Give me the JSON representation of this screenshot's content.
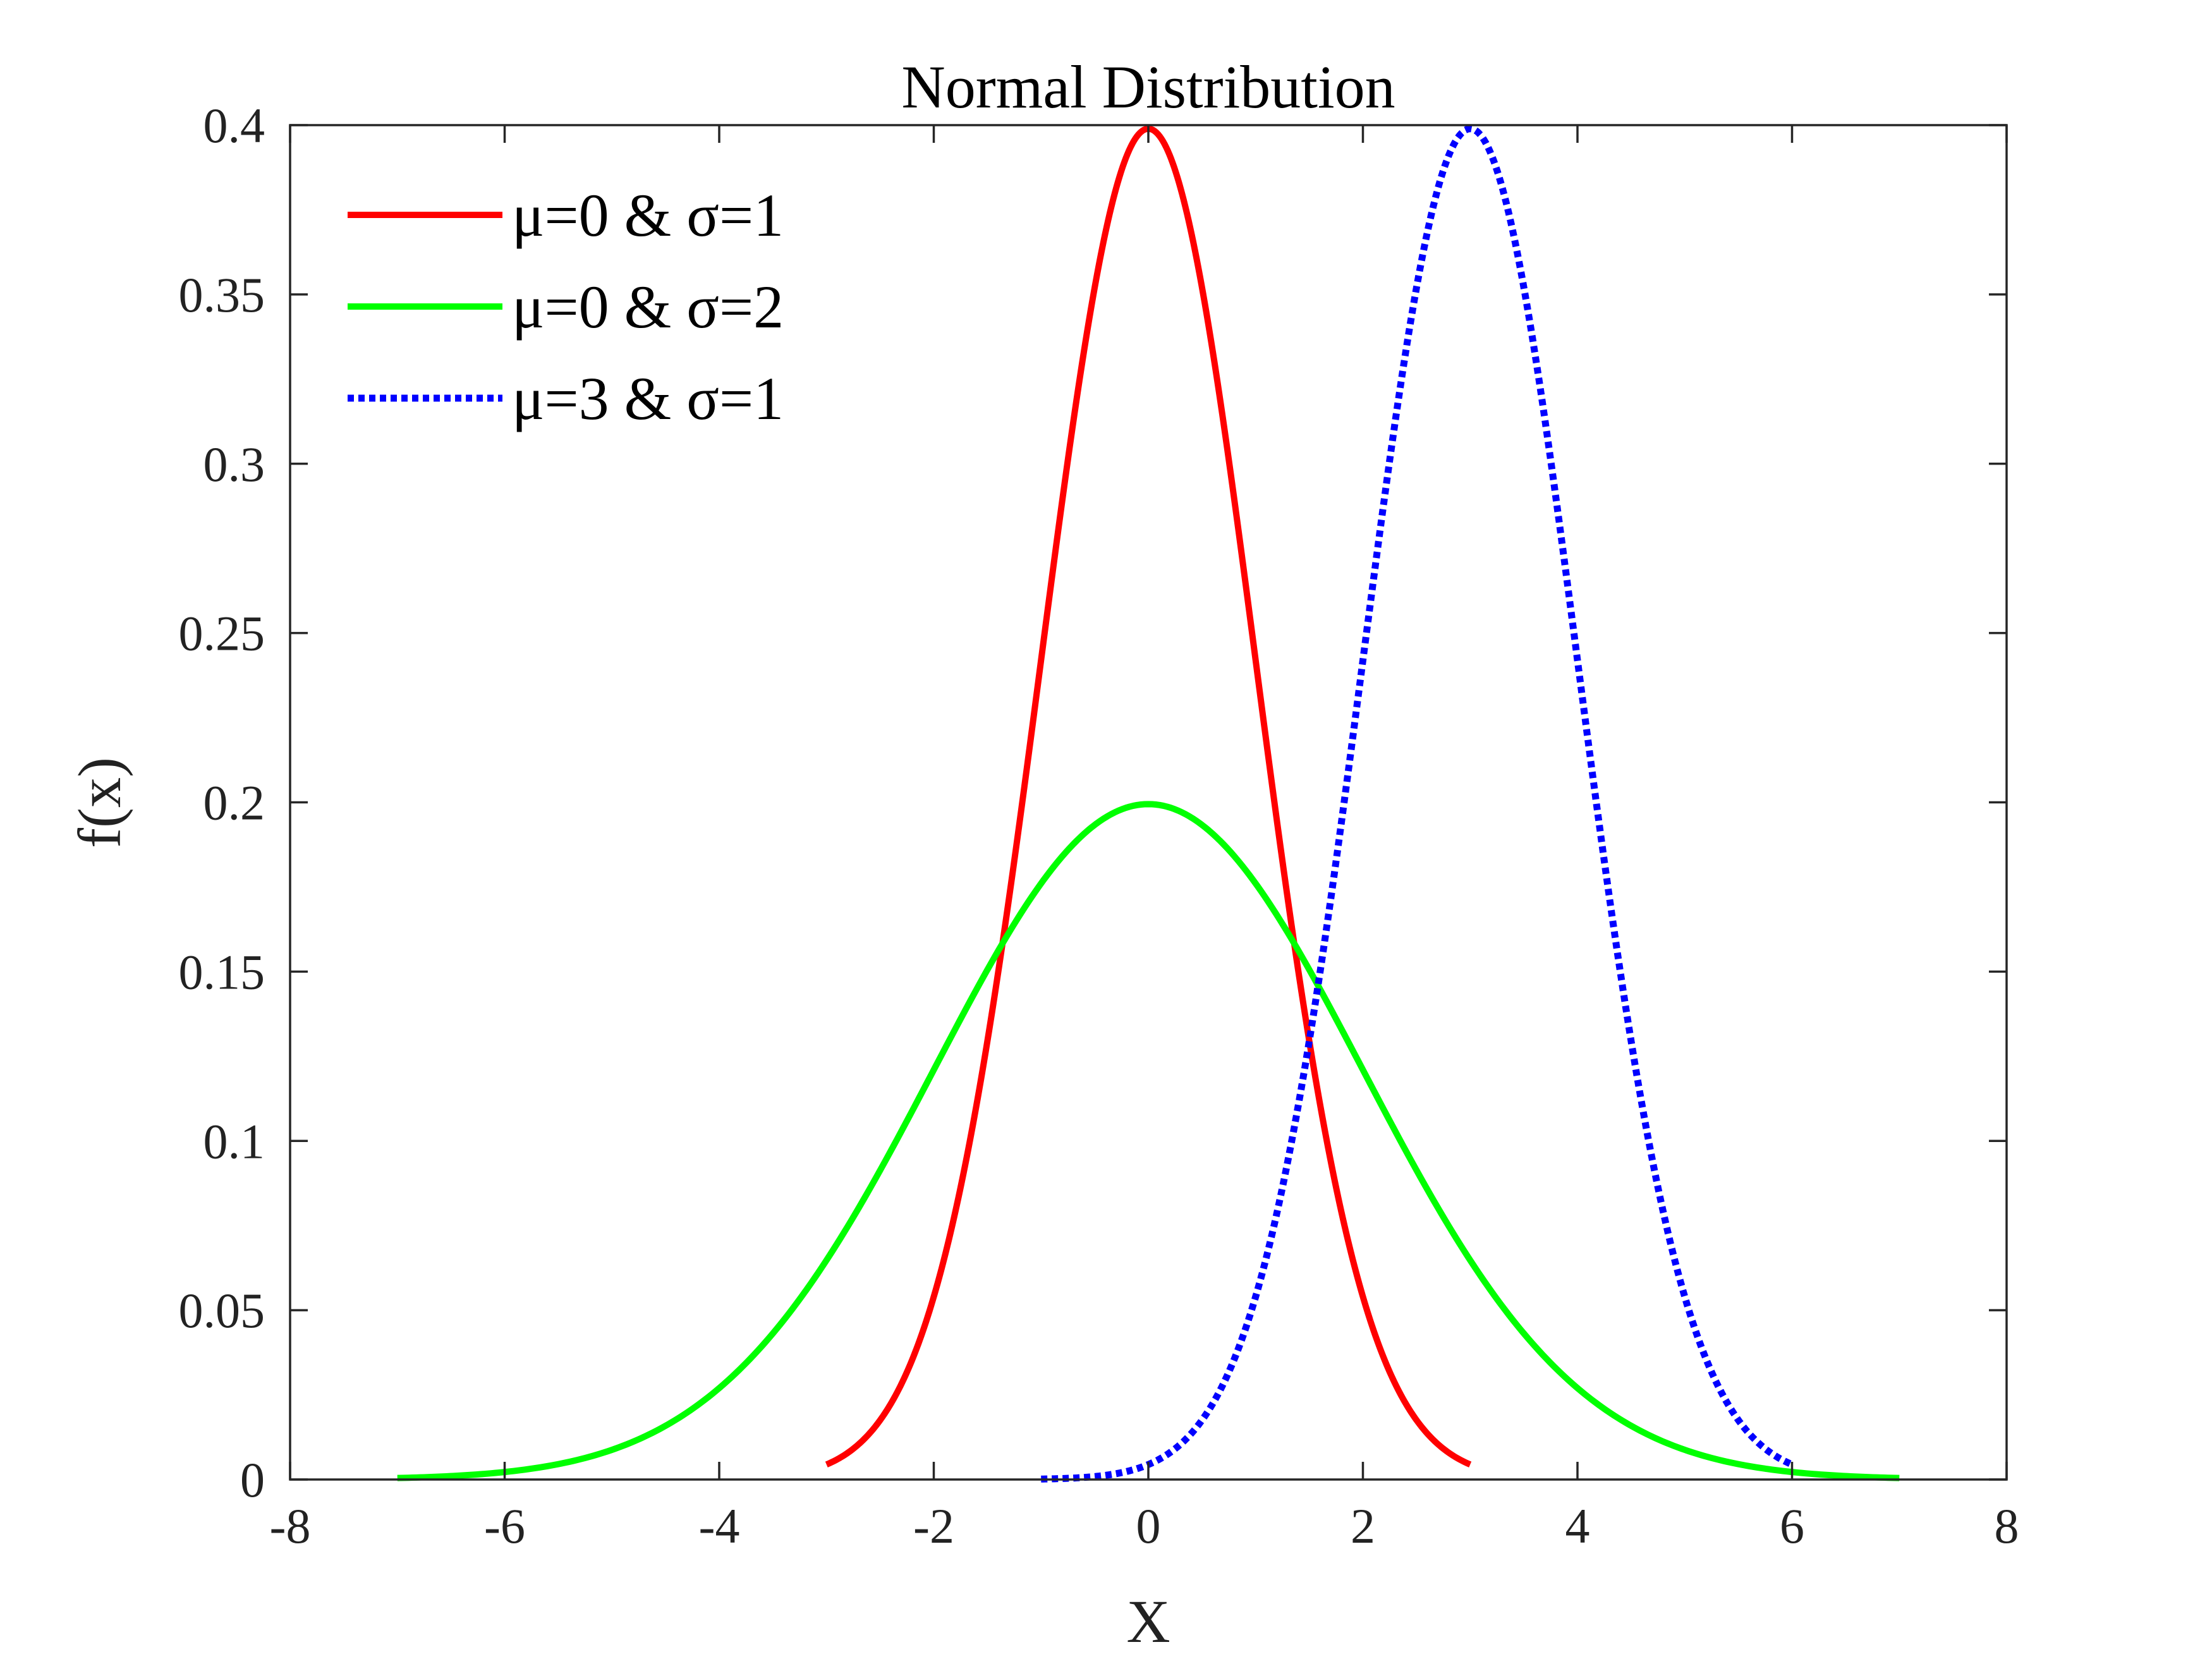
{
  "chart_data": {
    "type": "line",
    "title": "Normal Distribution",
    "xlabel": "X",
    "ylabel": "f(x)",
    "xlim": [
      -8,
      8
    ],
    "ylim": [
      0,
      0.4
    ],
    "xticks": [
      -8,
      -6,
      -4,
      -2,
      0,
      2,
      4,
      6,
      8
    ],
    "xtick_labels": [
      "-8",
      "-6",
      "-4",
      "-2",
      "0",
      "2",
      "4",
      "6",
      "8"
    ],
    "yticks": [
      0,
      0.05,
      0.1,
      0.15,
      0.2,
      0.25,
      0.3,
      0.35,
      0.4
    ],
    "ytick_labels": [
      "0",
      "0.05",
      "0.1",
      "0.15",
      "0.2",
      "0.25",
      "0.3",
      "0.35",
      "0.4"
    ],
    "grid": false,
    "legend_position": "top-left",
    "series": [
      {
        "name": "μ=0 & σ=1",
        "mu": 0,
        "sigma": 1,
        "x_range": [
          -3,
          3
        ],
        "color": "#ff0000",
        "line_style": "solid",
        "x": [
          -3,
          -2.5,
          -2,
          -1.5,
          -1,
          -0.5,
          0,
          0.5,
          1,
          1.5,
          2,
          2.5,
          3
        ],
        "values": [
          0.0044,
          0.0175,
          0.054,
          0.1295,
          0.242,
          0.3521,
          0.3989,
          0.3521,
          0.242,
          0.1295,
          0.054,
          0.0175,
          0.0044
        ]
      },
      {
        "name": "μ=0 & σ=2",
        "mu": 0,
        "sigma": 2,
        "x_range": [
          -7,
          7
        ],
        "color": "#00ff00",
        "line_style": "solid",
        "x": [
          -7,
          -6,
          -5,
          -4,
          -3,
          -2,
          -1,
          0,
          1,
          2,
          3,
          4,
          5,
          6,
          7
        ],
        "values": [
          0.0004,
          0.0022,
          0.0088,
          0.027,
          0.0648,
          0.121,
          0.176,
          0.1995,
          0.176,
          0.121,
          0.0648,
          0.027,
          0.0088,
          0.0022,
          0.0004
        ]
      },
      {
        "name": "μ=3 & σ=1",
        "mu": 3,
        "sigma": 1,
        "x_range": [
          -1,
          6
        ],
        "color": "#0000ff",
        "line_style": "dotted",
        "x": [
          -1,
          -0.5,
          0,
          0.5,
          1,
          1.5,
          2,
          2.5,
          3,
          3.5,
          4,
          4.5,
          5,
          5.5,
          6
        ],
        "values": [
          0.0001,
          0.0009,
          0.0044,
          0.0175,
          0.054,
          0.1295,
          0.242,
          0.3521,
          0.3989,
          0.3521,
          0.242,
          0.1295,
          0.054,
          0.0175,
          0.0044
        ]
      }
    ]
  }
}
